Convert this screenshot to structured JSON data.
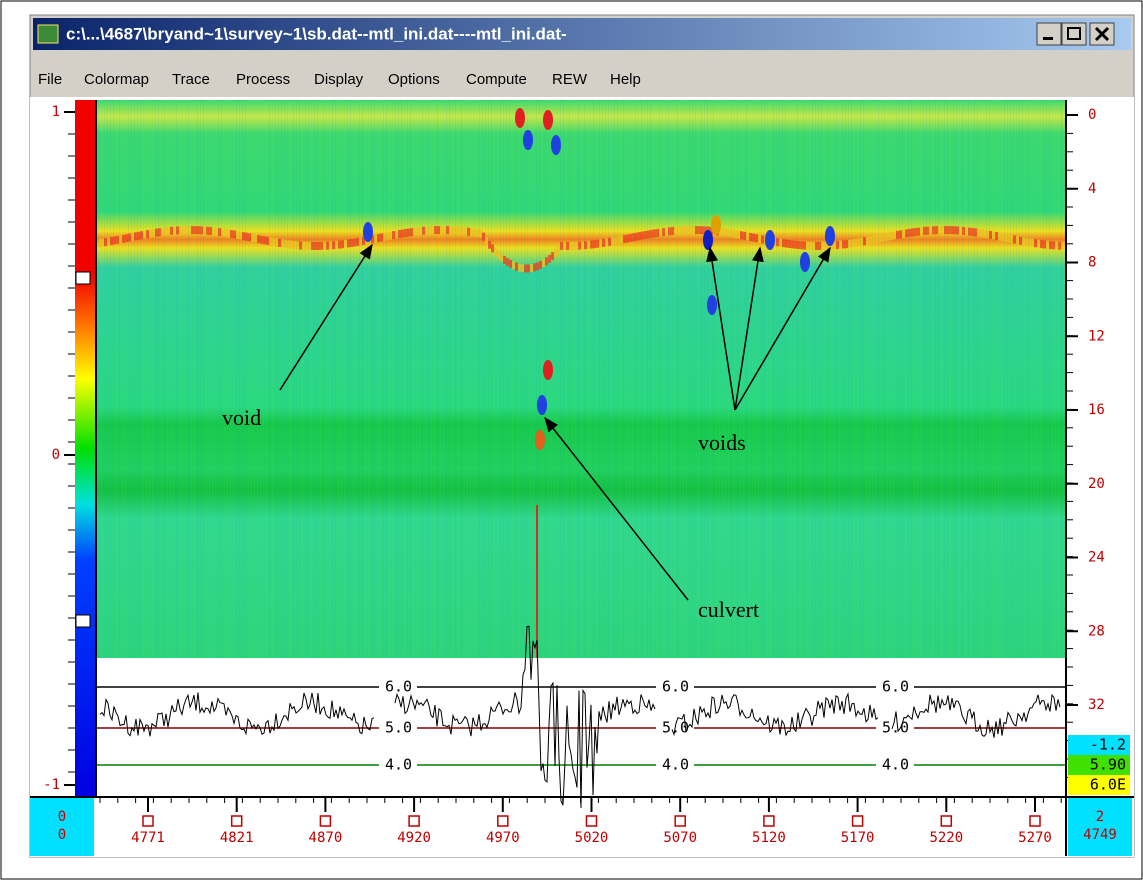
{
  "window": {
    "title": "c:\\...\\4687\\bryand~1\\survey~1\\sb.dat--mtl_ini.dat----mtl_ini.dat-"
  },
  "menu": [
    "File",
    "Colormap",
    "Trace",
    "Process",
    "Display",
    "Options",
    "Compute",
    "REW",
    "Help"
  ],
  "left_scale": {
    "labels": [
      "1",
      "0",
      "-1"
    ]
  },
  "right_scale": {
    "labels": [
      "0",
      "4",
      "8",
      "12",
      "16",
      "20",
      "24",
      "28",
      "32"
    ]
  },
  "readouts": [
    "-1.2",
    "5.90",
    "6.0E"
  ],
  "trace_panel": {
    "groups": [
      [
        "6.0",
        "5.0",
        "4.0"
      ],
      [
        "6.0",
        "5.0",
        "4.0"
      ],
      [
        "6.0",
        "5.0",
        "4.0"
      ]
    ]
  },
  "annotations": [
    "void",
    "voids",
    "culvert"
  ],
  "bottom_axis": {
    "labels": [
      "4771",
      "4821",
      "4870",
      "4920",
      "4970",
      "5020",
      "5070",
      "5120",
      "5170",
      "5220",
      "5270"
    ],
    "left_box": [
      "0",
      "0"
    ],
    "right_box": [
      "2",
      "4749"
    ]
  }
}
